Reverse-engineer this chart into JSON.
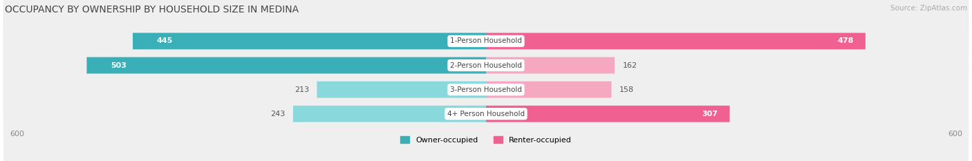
{
  "title": "OCCUPANCY BY OWNERSHIP BY HOUSEHOLD SIZE IN MEDINA",
  "source": "Source: ZipAtlas.com",
  "categories": [
    "1-Person Household",
    "2-Person Household",
    "3-Person Household",
    "4+ Person Household"
  ],
  "owner_values": [
    445,
    503,
    213,
    243
  ],
  "renter_values": [
    478,
    162,
    158,
    307
  ],
  "owner_color_large": "#3AAFB8",
  "owner_color_small": "#88D8DC",
  "renter_color_large": "#F06090",
  "renter_color_small": "#F5A8C0",
  "row_bg_color_dark": "#E4E4E4",
  "row_bg_color_light": "#EFEFEF",
  "max_val": 600,
  "axis_label_left": "600",
  "axis_label_right": "600",
  "legend_owner": "Owner-occupied",
  "legend_renter": "Renter-occupied",
  "title_fontsize": 10,
  "source_fontsize": 7.5,
  "label_fontsize": 8,
  "category_fontsize": 7.5,
  "large_threshold": 300
}
